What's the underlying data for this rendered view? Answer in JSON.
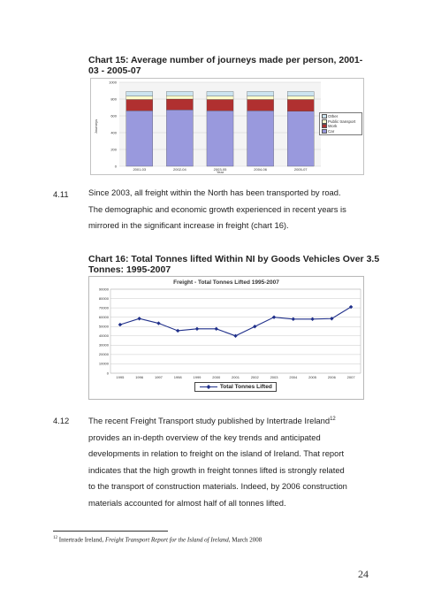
{
  "chart15": {
    "title": "Chart 15: Average number of journeys made per person, 2001-03 - 2005-07",
    "chart_data": {
      "type": "bar",
      "stacked": true,
      "categories": [
        "2001-03",
        "2002-04",
        "2003-05",
        "2004-06",
        "2005-07"
      ],
      "series": [
        {
          "name": "Car",
          "values": [
            660,
            670,
            660,
            660,
            655
          ],
          "color": "#9999dd"
        },
        {
          "name": "Work",
          "values": [
            135,
            130,
            135,
            135,
            140
          ],
          "color": "#b03030"
        },
        {
          "name": "Public transport",
          "values": [
            40,
            40,
            40,
            40,
            40
          ],
          "color": "#ffffcc"
        },
        {
          "name": "Other",
          "values": [
            55,
            50,
            55,
            55,
            55
          ],
          "color": "#cce4f0"
        }
      ],
      "yticks": [
        "0",
        "200",
        "400",
        "600",
        "800",
        "1000"
      ],
      "ylim": [
        0,
        1000
      ],
      "ylabel": "Journeys",
      "xlabel": "Year",
      "legend_placement": "right",
      "legend_order": [
        "Other",
        "Public transport",
        "Work",
        "Car"
      ]
    }
  },
  "para_411": {
    "number": "4.11",
    "lines": [
      "Since 2003, all freight within the North has been transported by road.",
      "The demographic and economic growth experienced in recent years is",
      "mirrored in the significant increase in freight (chart 16)."
    ]
  },
  "chart16": {
    "title_line1": "Chart 16: Total Tonnes lifted Within NI by Goods Vehicles Over 3.5",
    "title_line2": "Tonnes: 1995-2007",
    "chart_data": {
      "type": "line",
      "title": "Freight - Total Tonnes Lifted 1995-2007",
      "categories": [
        "1995",
        "1996",
        "1997",
        "1998",
        "1999",
        "2000",
        "2001",
        "2002",
        "2003",
        "2004",
        "2005",
        "2006",
        "2007"
      ],
      "series": [
        {
          "name": "Total Tonnes Lifted",
          "values": [
            52000,
            58500,
            53500,
            45500,
            47500,
            47500,
            40000,
            50000,
            60000,
            58000,
            58000,
            58500,
            71000
          ],
          "color": "#1f2f8a"
        }
      ],
      "yticks": [
        "0",
        "10000",
        "20000",
        "30000",
        "40000",
        "50000",
        "60000",
        "70000",
        "80000",
        "90000"
      ],
      "ylim": [
        0,
        90000
      ],
      "grid": true,
      "legend_placement": "bottom"
    }
  },
  "para_412": {
    "number": "4.12",
    "line1": "The recent Freight Transport study published by Intertrade Ireland",
    "sup": "12",
    "lines": [
      "provides an in-depth overview of the key trends and anticipated",
      "developments in relation to freight on the island of Ireland. That report",
      "indicates that the high growth in freight tonnes lifted is strongly related",
      "to the transport of construction materials. Indeed, by 2006 construction",
      "materials accounted for almost half of all tonnes lifted."
    ]
  },
  "footnote": {
    "sup": "12",
    "text": "Intertrade Ireland,",
    "italic": "Freight Transport Report for the Island of Ireland,",
    "date": "March 2008"
  },
  "page_number": "24"
}
